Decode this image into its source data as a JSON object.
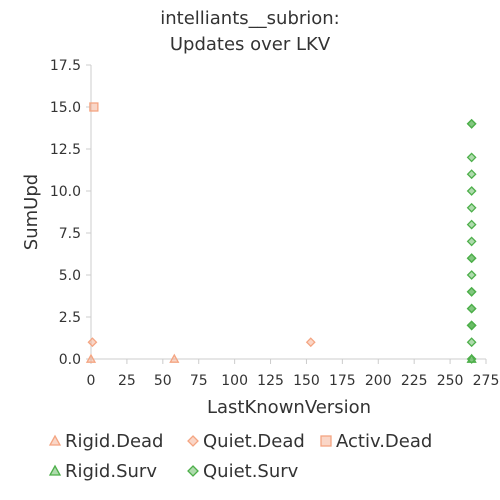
{
  "chart_data": {
    "type": "scatter",
    "title": [
      "intelliants__subrion:",
      "Updates over LKV"
    ],
    "xlabel": "LastKnownVersion",
    "ylabel": "SumUpd",
    "xlim": [
      0,
      275
    ],
    "ylim": [
      0,
      17.5
    ],
    "xticks": [
      "0",
      "25",
      "50",
      "75",
      "100",
      "125",
      "150",
      "175",
      "200",
      "225",
      "250",
      "275"
    ],
    "yticks": [
      "0.0",
      "2.5",
      "5.0",
      "7.5",
      "10.0",
      "12.5",
      "15.0",
      "17.5"
    ],
    "grid": false,
    "legend_position": "bottom",
    "series": [
      {
        "name": "Rigid.Dead",
        "marker": "triangle",
        "color": "#f4a582",
        "points": [
          [
            0,
            0
          ],
          [
            58,
            0
          ]
        ]
      },
      {
        "name": "Quiet.Dead",
        "marker": "diamond",
        "color": "#f4a582",
        "points": [
          [
            1,
            1
          ],
          [
            153,
            1
          ]
        ]
      },
      {
        "name": "Activ.Dead",
        "marker": "square",
        "color": "#f4a582",
        "points": [
          [
            2,
            15
          ]
        ]
      },
      {
        "name": "Rigid.Surv",
        "marker": "triangle",
        "color": "#4daf4a",
        "points": [
          [
            265,
            0
          ]
        ]
      },
      {
        "name": "Quiet.Surv",
        "marker": "diamond",
        "color": "#4daf4a",
        "points": [
          [
            265,
            0
          ],
          [
            265,
            1
          ],
          [
            265,
            2
          ],
          [
            265,
            2
          ],
          [
            265,
            2
          ],
          [
            265,
            3
          ],
          [
            265,
            3
          ],
          [
            265,
            4
          ],
          [
            265,
            4
          ],
          [
            265,
            5
          ],
          [
            265,
            6
          ],
          [
            265,
            6
          ],
          [
            265,
            7
          ],
          [
            265,
            8
          ],
          [
            265,
            9
          ],
          [
            265,
            10
          ],
          [
            265,
            11
          ],
          [
            265,
            12
          ],
          [
            265,
            14
          ],
          [
            265,
            14
          ]
        ]
      }
    ]
  }
}
